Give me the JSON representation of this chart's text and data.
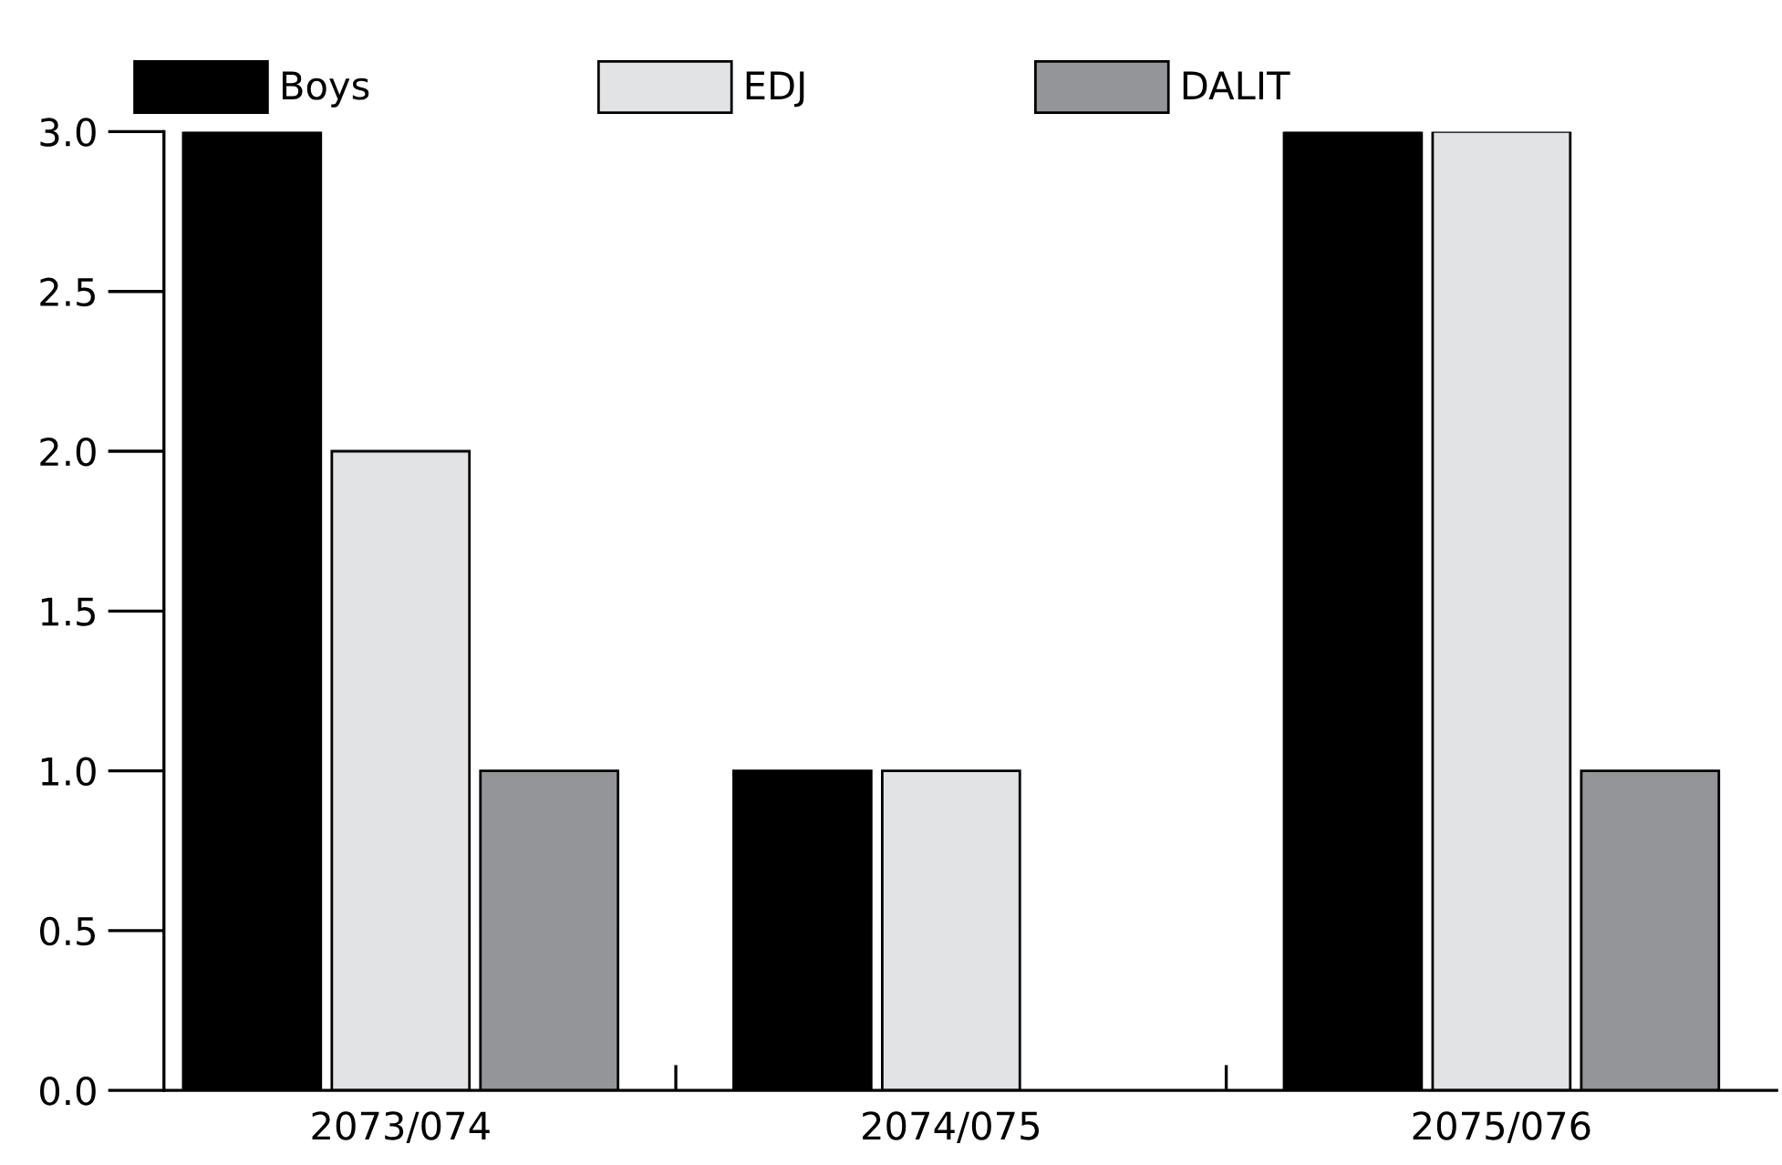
{
  "chart_data": {
    "type": "bar",
    "categories": [
      "2073/074",
      "2074/075",
      "2075/076"
    ],
    "series": [
      {
        "name": "Boys",
        "color": "#000000",
        "values": [
          3,
          1,
          3
        ]
      },
      {
        "name": "EDJ",
        "color": "#e2e3e5",
        "values": [
          2,
          1,
          3
        ]
      },
      {
        "name": "DALIT",
        "color": "#939598",
        "values": [
          1,
          null,
          1
        ]
      }
    ],
    "ylim": [
      0,
      3
    ],
    "yticks": [
      {
        "value": 0,
        "label": "0.0"
      },
      {
        "value": 0.5,
        "label": "0.5"
      },
      {
        "value": 1,
        "label": "1.0"
      },
      {
        "value": 1.5,
        "label": "1.5"
      },
      {
        "value": 2,
        "label": "2.0"
      },
      {
        "value": 2.5,
        "label": "2.5"
      },
      {
        "value": 3,
        "label": "3.0"
      }
    ],
    "grid": false,
    "legend": "top"
  }
}
